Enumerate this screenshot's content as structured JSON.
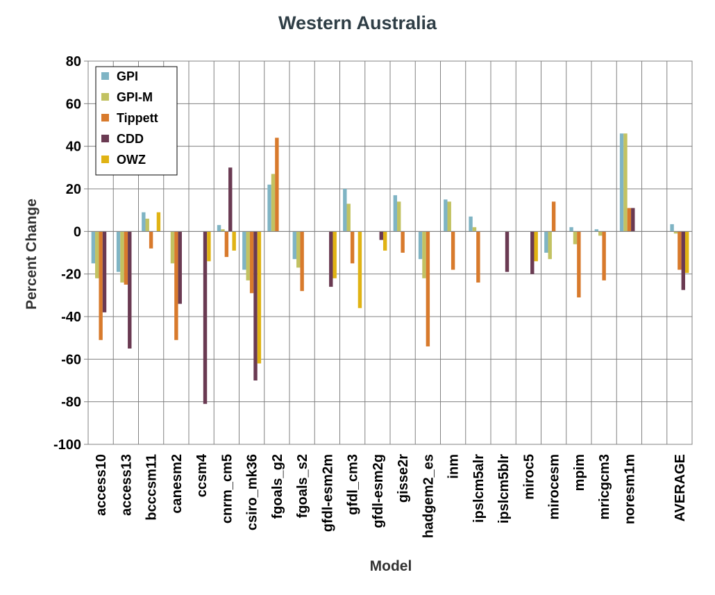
{
  "chart_data": {
    "type": "bar",
    "title": "Western Australia",
    "xlabel": "Model",
    "ylabel": "Percent Change",
    "ylim": [
      -100,
      80
    ],
    "yticks": [
      "80",
      "60",
      "40",
      "20",
      "0",
      "-20",
      "-40",
      "-60",
      "-80",
      "-100"
    ],
    "grid": true,
    "legend_position": "top-left",
    "categories": [
      "access10",
      "access13",
      "bcccsm11",
      "canesm2",
      "ccsm4",
      "cnrm_cm5",
      "csiro_mk36",
      "fgoals_g2",
      "fgoals_s2",
      "gfdl-esm2m",
      "gfdl_cm3",
      "gfdl-esm2g",
      "gisse2r",
      "hadgem2_es",
      "inm",
      "ipslcm5alr",
      "ipslcm5blr",
      "miroc5",
      "mirocesm",
      "mpim",
      "mricgcm3",
      "noresm1m",
      "",
      "AVERAGE"
    ],
    "series": [
      {
        "name": "GPI",
        "color": "#7fb4c4",
        "values": [
          -15,
          -19,
          9,
          0,
          0,
          3,
          -18,
          22,
          -13,
          0,
          20,
          0,
          17,
          -13,
          15,
          7,
          0,
          0,
          -10,
          2,
          1,
          46,
          null,
          3.4
        ]
      },
      {
        "name": "GPI-M",
        "color": "#c2c262",
        "values": [
          -22,
          -24,
          6,
          -15,
          0,
          1,
          -23,
          27,
          -17,
          0,
          13,
          0,
          14,
          -22,
          14,
          2,
          0,
          0,
          -13,
          -6,
          -2,
          46,
          null,
          -1
        ]
      },
      {
        "name": "Tippett",
        "color": "#d87a2c",
        "values": [
          -51,
          -25,
          -8,
          -51,
          0,
          -12,
          -29,
          44,
          -28,
          0,
          -15,
          0,
          -10,
          -54,
          -18,
          -24,
          0,
          0,
          14,
          -31,
          -23,
          11,
          null,
          -18
        ]
      },
      {
        "name": "CDD",
        "color": "#6a3a52",
        "values": [
          -38,
          -55,
          0,
          -34,
          -81,
          30,
          -70,
          0,
          0,
          -26,
          0,
          -4,
          0,
          0,
          0,
          0,
          -19,
          -20,
          0,
          0,
          0,
          11,
          null,
          -27.5
        ]
      },
      {
        "name": "OWZ",
        "color": "#e0b314",
        "values": [
          0,
          0,
          9,
          0,
          -14,
          -9,
          -62,
          0,
          0,
          -22,
          -36,
          -9,
          0,
          0,
          0,
          0,
          0,
          -14,
          0,
          0,
          0,
          0,
          null,
          -19.5
        ]
      }
    ]
  }
}
